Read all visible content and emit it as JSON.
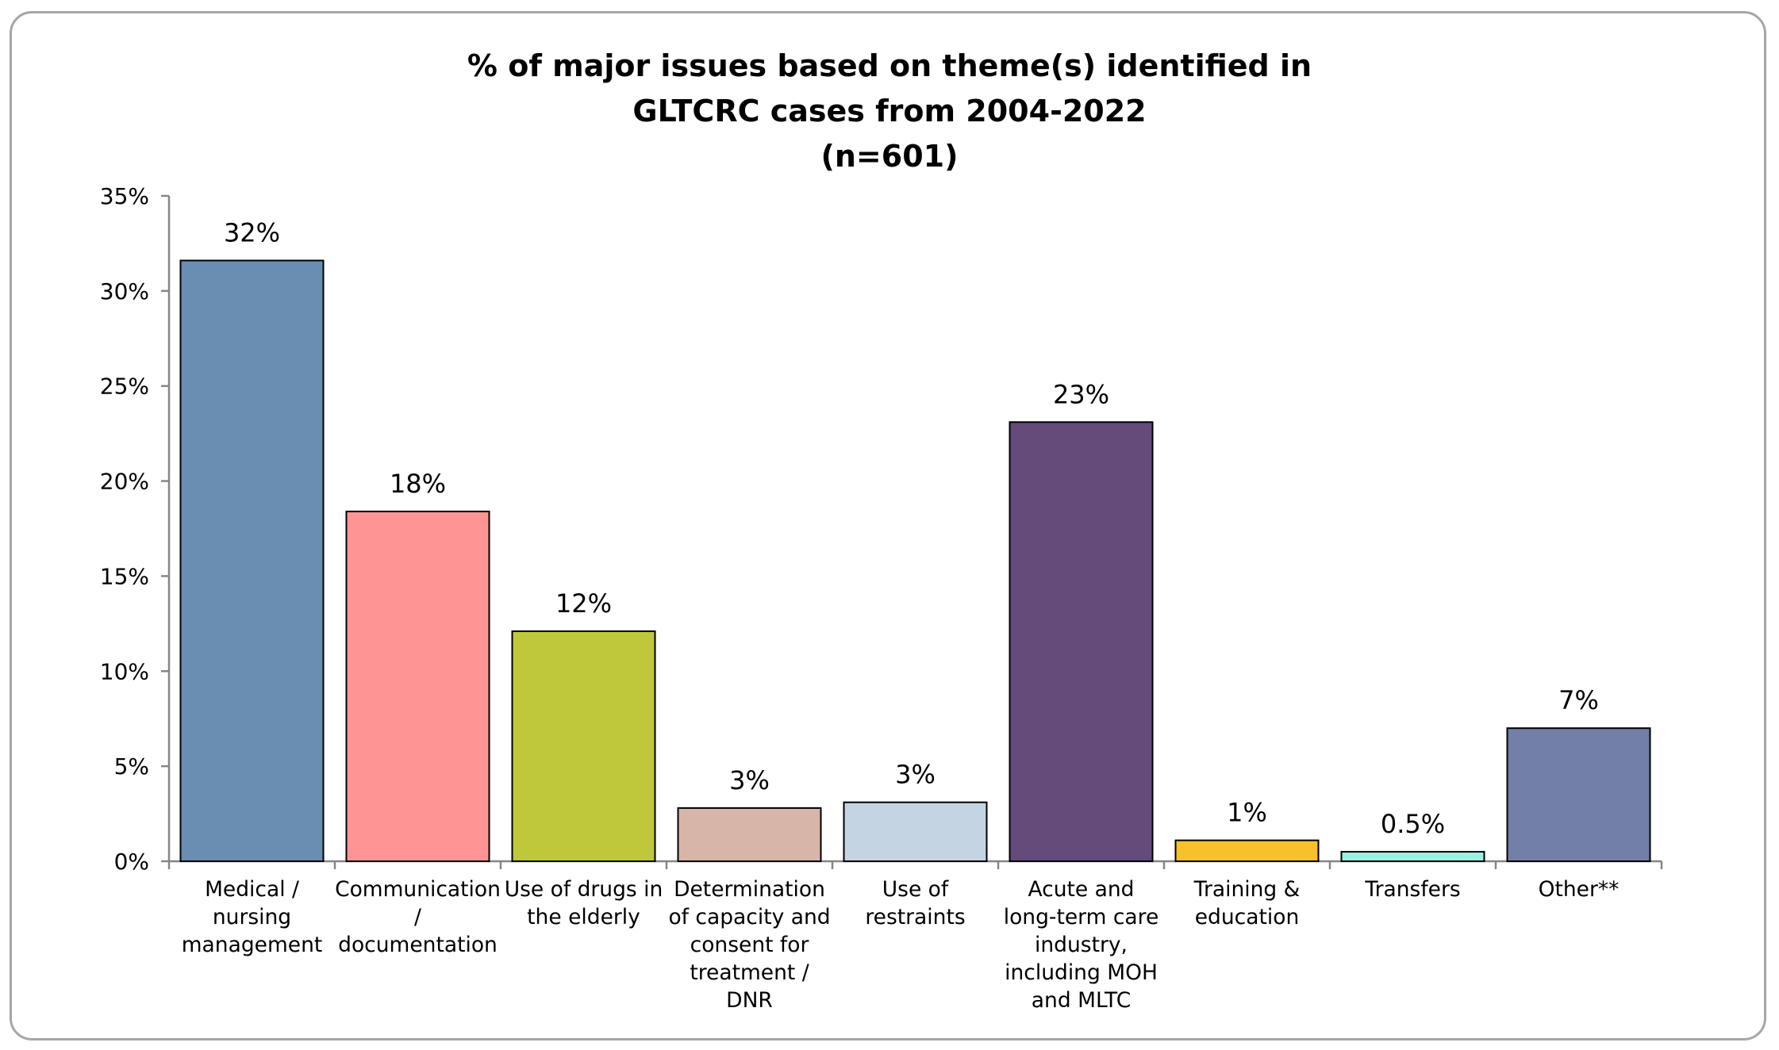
{
  "chart_data": {
    "type": "bar",
    "title_lines": [
      "% of major issues based on theme(s) identified in",
      "GLTCRC cases from 2004-2022",
      "(n=601)"
    ],
    "categories": [
      [
        "Medical /",
        "nursing",
        "management"
      ],
      [
        "Communication",
        "/",
        "documentation"
      ],
      [
        "Use of drugs in",
        "the elderly"
      ],
      [
        "Determination",
        "of capacity and",
        "consent for",
        "treatment /",
        "DNR"
      ],
      [
        "Use of",
        "restraints"
      ],
      [
        "Acute and",
        "long-term care",
        "industry,",
        "including MOH",
        "and MLTC"
      ],
      [
        "Training &",
        "education"
      ],
      [
        "Transfers"
      ],
      [
        "Other**"
      ]
    ],
    "values": [
      31.6,
      18.4,
      12.1,
      2.8,
      3.1,
      23.1,
      1.1,
      0.5,
      7.0
    ],
    "data_labels": [
      "32%",
      "18%",
      "12%",
      "3%",
      "3%",
      "23%",
      "1%",
      "0.5%",
      "7%"
    ],
    "colors": [
      "#6a8db2",
      "#ff9494",
      "#bfc83a",
      "#d7b5a8",
      "#c4d4e2",
      "#644b7a",
      "#f6c12a",
      "#99f2e2",
      "#727fa6"
    ],
    "y_ticks": [
      "0%",
      "5%",
      "10%",
      "15%",
      "20%",
      "25%",
      "30%",
      "35%"
    ],
    "ylim": [
      0,
      35
    ],
    "grid": false,
    "legend": "none"
  }
}
